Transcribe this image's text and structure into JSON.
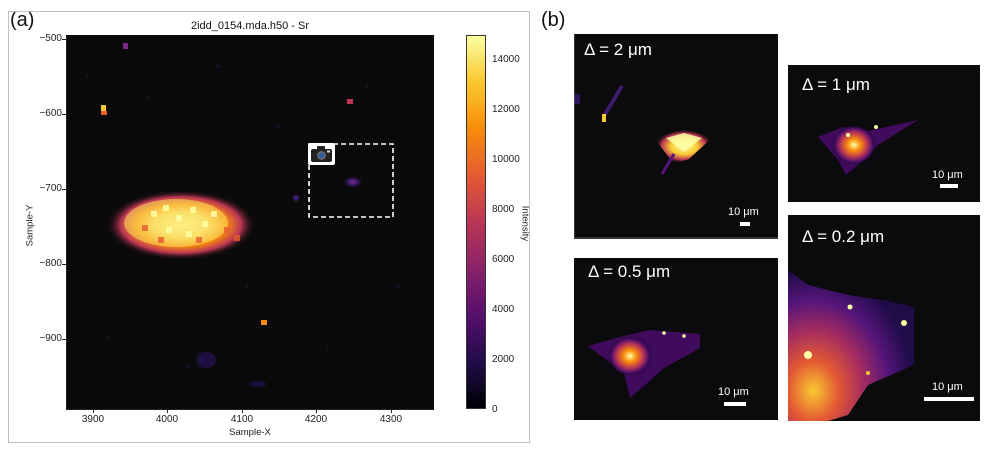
{
  "panel_a": {
    "label": "(a)",
    "title": "2idd_0154.mda.h50 - Sr",
    "x_label": "Sample-X",
    "y_label": "Sample-Y",
    "x_ticks": [
      "3900",
      "4000",
      "4100",
      "4200",
      "4300"
    ],
    "y_ticks": [
      "−500",
      "−600",
      "−700",
      "−800",
      "−900"
    ],
    "colorbar": {
      "label": "Intensity",
      "ticks": [
        "14000",
        "12000",
        "10000",
        "8000",
        "6000",
        "4000",
        "2000",
        "0"
      ],
      "colormap": "inferno"
    },
    "camera_icon": "camera-icon"
  },
  "panel_b": {
    "label": "(b)",
    "images": [
      {
        "delta": "Δ = 2 μm",
        "scale": "10 μm"
      },
      {
        "delta": "Δ = 1 μm",
        "scale": "10 μm"
      },
      {
        "delta": "Δ = 0.5 μm",
        "scale": "10 μm"
      },
      {
        "delta": "Δ = 0.2 μm",
        "scale": "10 μm"
      }
    ]
  }
}
